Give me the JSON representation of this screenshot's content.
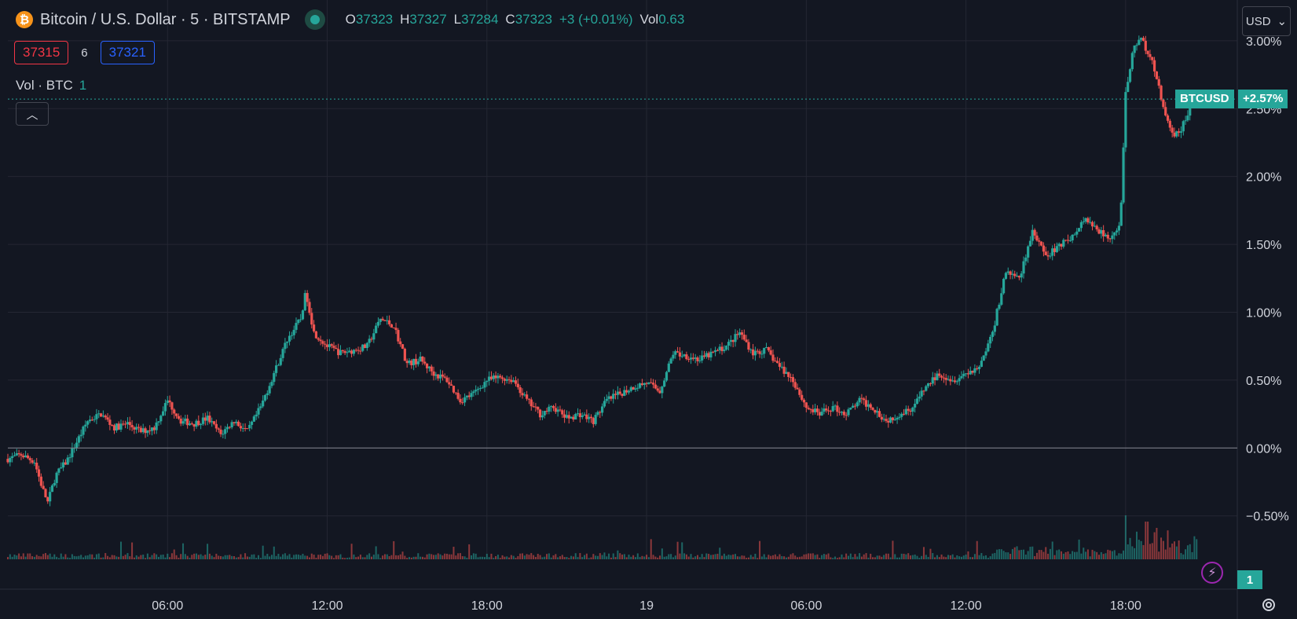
{
  "header": {
    "coin_glyph": "₿",
    "title": "Bitcoin / U.S. Dollar · 5 · BITSTAMP",
    "ohlc": [
      {
        "key": "O",
        "value": "37323"
      },
      {
        "key": "H",
        "value": "37327"
      },
      {
        "key": "L",
        "value": "37284"
      },
      {
        "key": "C",
        "value": "37323"
      }
    ],
    "change": "+3 (+0.01%)",
    "vol_key": "Vol",
    "vol_value": "0.63"
  },
  "trade": {
    "sell": "37315",
    "spread": "6",
    "buy": "37321"
  },
  "volume_legend": {
    "label": "Vol · BTC",
    "value": "1"
  },
  "currency_button": {
    "label": "USD",
    "caret": "⌄"
  },
  "price_tag": {
    "symbol": "BTCUSD",
    "value": "+2.57%"
  },
  "badge": {
    "value": "1"
  },
  "collapse_glyph": "︿",
  "flash_glyph": "⚡",
  "colors": {
    "up": "#26a69a",
    "down": "#ef5350",
    "grid": "#242733",
    "bg": "#131722"
  },
  "chart_data": {
    "type": "candlestick",
    "yscale": "percent",
    "y_ticks": [
      "3.00%",
      "2.50%",
      "2.00%",
      "1.50%",
      "1.00%",
      "0.50%",
      "0.00%",
      "−0.50%"
    ],
    "y_tick_values": [
      3.0,
      2.5,
      2.0,
      1.5,
      1.0,
      0.5,
      0.0,
      -0.5
    ],
    "ylim": [
      -0.82,
      3.3
    ],
    "x_ticks": [
      "06:00",
      "12:00",
      "18:00",
      "19",
      "06:00",
      "12:00",
      "18:00"
    ],
    "x_tick_hours": [
      6,
      12,
      18,
      24,
      30,
      36,
      42
    ],
    "xlim_hours": [
      0,
      45.9
    ],
    "reference_value": 0.0,
    "last_value": 2.57,
    "close_path": [
      [
        0.0,
        -0.08
      ],
      [
        0.5,
        -0.05
      ],
      [
        1.0,
        -0.1
      ],
      [
        1.3,
        -0.3
      ],
      [
        1.5,
        -0.4
      ],
      [
        1.8,
        -0.2
      ],
      [
        2.2,
        -0.1
      ],
      [
        2.6,
        0.05
      ],
      [
        3.0,
        0.2
      ],
      [
        3.5,
        0.25
      ],
      [
        4.0,
        0.15
      ],
      [
        4.5,
        0.18
      ],
      [
        5.0,
        0.12
      ],
      [
        5.5,
        0.15
      ],
      [
        6.0,
        0.35
      ],
      [
        6.5,
        0.2
      ],
      [
        7.0,
        0.18
      ],
      [
        7.5,
        0.22
      ],
      [
        8.0,
        0.1
      ],
      [
        8.5,
        0.2
      ],
      [
        9.0,
        0.12
      ],
      [
        9.5,
        0.3
      ],
      [
        10.0,
        0.55
      ],
      [
        10.5,
        0.8
      ],
      [
        11.0,
        0.95
      ],
      [
        11.2,
        1.15
      ],
      [
        11.5,
        0.85
      ],
      [
        12.0,
        0.75
      ],
      [
        12.5,
        0.7
      ],
      [
        13.0,
        0.72
      ],
      [
        13.5,
        0.75
      ],
      [
        14.0,
        0.95
      ],
      [
        14.5,
        0.9
      ],
      [
        15.0,
        0.62
      ],
      [
        15.5,
        0.65
      ],
      [
        16.0,
        0.55
      ],
      [
        16.5,
        0.5
      ],
      [
        17.0,
        0.35
      ],
      [
        17.5,
        0.4
      ],
      [
        18.0,
        0.5
      ],
      [
        18.5,
        0.52
      ],
      [
        19.0,
        0.5
      ],
      [
        19.5,
        0.35
      ],
      [
        20.0,
        0.25
      ],
      [
        20.5,
        0.3
      ],
      [
        21.0,
        0.22
      ],
      [
        21.5,
        0.25
      ],
      [
        22.0,
        0.2
      ],
      [
        22.5,
        0.35
      ],
      [
        23.0,
        0.4
      ],
      [
        23.5,
        0.45
      ],
      [
        24.0,
        0.48
      ],
      [
        24.5,
        0.42
      ],
      [
        25.0,
        0.7
      ],
      [
        25.5,
        0.68
      ],
      [
        26.0,
        0.65
      ],
      [
        26.5,
        0.7
      ],
      [
        27.0,
        0.75
      ],
      [
        27.5,
        0.85
      ],
      [
        28.0,
        0.7
      ],
      [
        28.5,
        0.72
      ],
      [
        29.0,
        0.6
      ],
      [
        29.5,
        0.5
      ],
      [
        30.0,
        0.3
      ],
      [
        30.5,
        0.25
      ],
      [
        31.0,
        0.3
      ],
      [
        31.5,
        0.25
      ],
      [
        32.0,
        0.35
      ],
      [
        32.5,
        0.3
      ],
      [
        33.0,
        0.2
      ],
      [
        33.5,
        0.25
      ],
      [
        34.0,
        0.3
      ],
      [
        34.5,
        0.45
      ],
      [
        35.0,
        0.55
      ],
      [
        35.5,
        0.5
      ],
      [
        36.0,
        0.55
      ],
      [
        36.5,
        0.6
      ],
      [
        37.0,
        0.85
      ],
      [
        37.5,
        1.3
      ],
      [
        38.0,
        1.25
      ],
      [
        38.5,
        1.6
      ],
      [
        39.0,
        1.4
      ],
      [
        39.5,
        1.5
      ],
      [
        40.0,
        1.55
      ],
      [
        40.5,
        1.7
      ],
      [
        41.0,
        1.6
      ],
      [
        41.5,
        1.55
      ],
      [
        41.8,
        1.65
      ],
      [
        42.0,
        2.6
      ],
      [
        42.3,
        2.95
      ],
      [
        42.6,
        3.0
      ],
      [
        42.9,
        2.9
      ],
      [
        43.2,
        2.7
      ],
      [
        43.5,
        2.45
      ],
      [
        43.8,
        2.3
      ],
      [
        44.1,
        2.35
      ],
      [
        44.4,
        2.5
      ],
      [
        44.7,
        2.57
      ]
    ],
    "volume_spikes": [
      [
        17.8,
        0.02
      ],
      [
        35.8,
        0.02
      ],
      [
        37.3,
        0.08
      ],
      [
        38.4,
        0.1
      ],
      [
        40.5,
        0.06
      ],
      [
        42.0,
        0.35
      ],
      [
        42.4,
        0.22
      ],
      [
        42.8,
        0.3
      ],
      [
        43.2,
        0.25
      ],
      [
        43.6,
        0.18
      ],
      [
        44.0,
        0.15
      ],
      [
        44.4,
        0.12
      ]
    ]
  }
}
